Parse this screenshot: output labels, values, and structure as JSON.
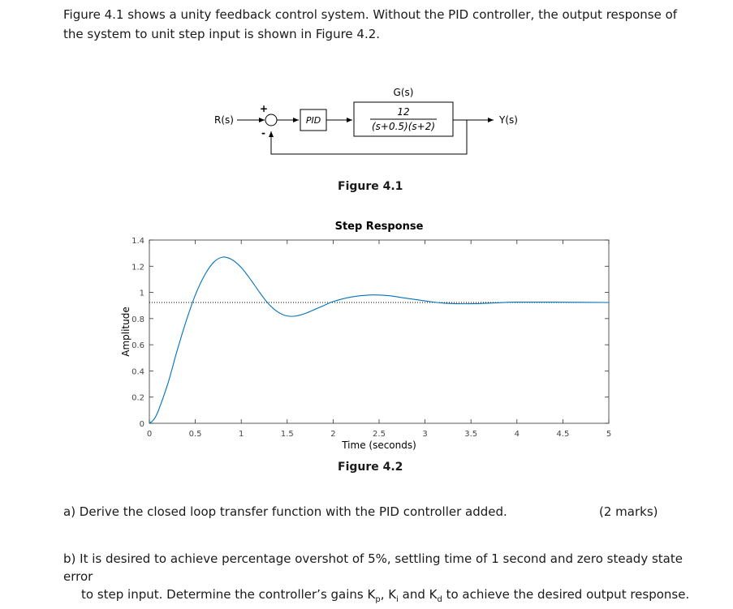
{
  "intro": "Figure 4.1 shows a unity feedback control system. Without the PID controller, the output response of the system to unit step input is shown in Figure 4.2.",
  "block_diagram": {
    "input": "R(s)",
    "plus": "+",
    "minus": "-",
    "controller": "PID",
    "plant_name": "G(s)",
    "plant_num": "12",
    "plant_den": "(s+0.5)(s+2)",
    "output": "Y(s)"
  },
  "fig1_caption": "Figure 4.1",
  "fig2_caption": "Figure 4.2",
  "chart_data": {
    "type": "line",
    "title": "Step Response",
    "xlabel": "Time (seconds)",
    "ylabel": "Amplitude",
    "xlim": [
      0,
      5
    ],
    "ylim": [
      0,
      1.4
    ],
    "xticks": [
      "0",
      "0.5",
      "1",
      "1.5",
      "2",
      "2.5",
      "3",
      "3.5",
      "4",
      "4.5",
      "5"
    ],
    "yticks": [
      "0",
      "0.2",
      "0.4",
      "0.6",
      "0.8",
      "1",
      "1.2",
      "1.4"
    ],
    "reference_line": 0.923,
    "series": [
      {
        "x": [
          0,
          0.05,
          0.1,
          0.2,
          0.3,
          0.4,
          0.5,
          0.6,
          0.7,
          0.8,
          0.9,
          1.0,
          1.1,
          1.2,
          1.3,
          1.4,
          1.5,
          1.6,
          1.7,
          1.8,
          1.9,
          2.0,
          2.2,
          2.4,
          2.6,
          2.8,
          3.0,
          3.2,
          3.4,
          3.6,
          3.8,
          4.0,
          4.5,
          5.0
        ],
        "y": [
          0,
          0.03,
          0.1,
          0.3,
          0.55,
          0.78,
          0.98,
          1.13,
          1.23,
          1.27,
          1.25,
          1.19,
          1.1,
          1.0,
          0.91,
          0.85,
          0.82,
          0.82,
          0.84,
          0.87,
          0.9,
          0.93,
          0.965,
          0.98,
          0.975,
          0.955,
          0.935,
          0.918,
          0.913,
          0.915,
          0.921,
          0.926,
          0.925,
          0.923
        ],
        "color": "#0072bd"
      }
    ]
  },
  "question_a": "a) Derive the closed loop transfer function with the PID controller added.",
  "question_a_marks": "(2 marks)",
  "question_b_line1": "b) It is desired to achieve percentage overshot of 5%, settling time of 1 second and zero steady state error",
  "question_b_line2_pre": "to step input. Determine the controller’s gains K",
  "kp_sub": "p",
  "sep1": ", K",
  "ki_sub": "i",
  "sep2": " and K",
  "kd_sub": "d",
  "question_b_line2_post": " to achieve the desired output response."
}
